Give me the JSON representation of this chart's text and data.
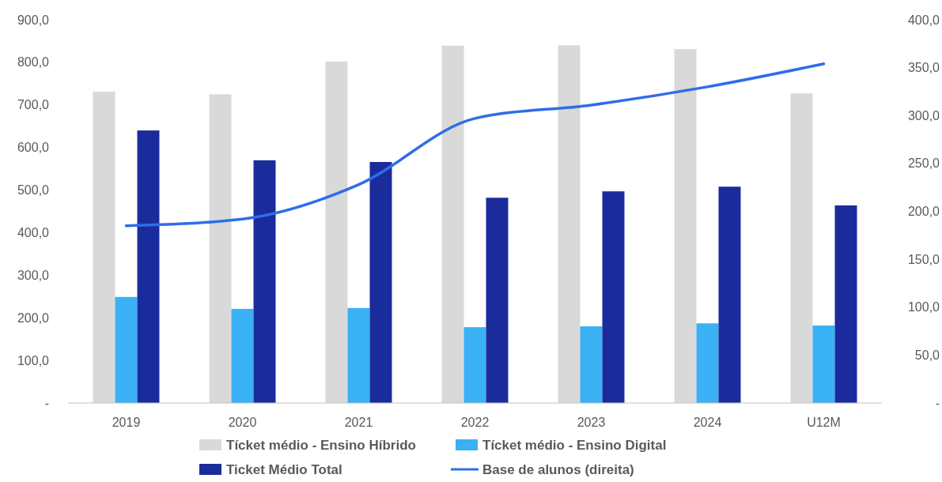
{
  "chart_data": {
    "type": "bar",
    "categories": [
      "2019",
      "2020",
      "2021",
      "2022",
      "2023",
      "2024",
      "U12M"
    ],
    "series": [
      {
        "name": "Tícket médio - Ensino Híbrido",
        "color": "#d9d9d9",
        "values": [
          731,
          725,
          802,
          839,
          840,
          831,
          727
        ]
      },
      {
        "name": "Tícket médio - Ensino Digital",
        "color": "#3ab0f5",
        "values": [
          249,
          221,
          223,
          178,
          180,
          187,
          182
        ]
      },
      {
        "name": "Ticket Médio Total",
        "color": "#1a2c9c",
        "values": [
          640,
          570,
          566,
          482,
          497,
          508,
          464
        ]
      },
      {
        "name": "Base de alunos (direita)",
        "type": "line",
        "axis": "y2",
        "color": "#2f6de8",
        "values": [
          185,
          192,
          228,
          297,
          311,
          330,
          354
        ]
      }
    ],
    "ylim": [
      0,
      900
    ],
    "yticks": [
      {
        "value": 0,
        "label": "-"
      },
      {
        "value": 100,
        "label": "100,0"
      },
      {
        "value": 200,
        "label": "200,0"
      },
      {
        "value": 300,
        "label": "300,0"
      },
      {
        "value": 400,
        "label": "400,0"
      },
      {
        "value": 500,
        "label": "500,0"
      },
      {
        "value": 600,
        "label": "600,0"
      },
      {
        "value": 700,
        "label": "700,0"
      },
      {
        "value": 800,
        "label": "800,0"
      },
      {
        "value": 900,
        "label": "900,0"
      }
    ],
    "y2lim": [
      0,
      400
    ],
    "y2ticks": [
      {
        "value": 0,
        "label": "-"
      },
      {
        "value": 50,
        "label": "50,0"
      },
      {
        "value": 100,
        "label": "100,0"
      },
      {
        "value": 150,
        "label": "150,0"
      },
      {
        "value": 200,
        "label": "200,0"
      },
      {
        "value": 250,
        "label": "250,0"
      },
      {
        "value": 300,
        "label": "300,0"
      },
      {
        "value": 350,
        "label": "350,0"
      },
      {
        "value": 400,
        "label": "400,0"
      }
    ],
    "grid": false,
    "legend": "bottom"
  }
}
